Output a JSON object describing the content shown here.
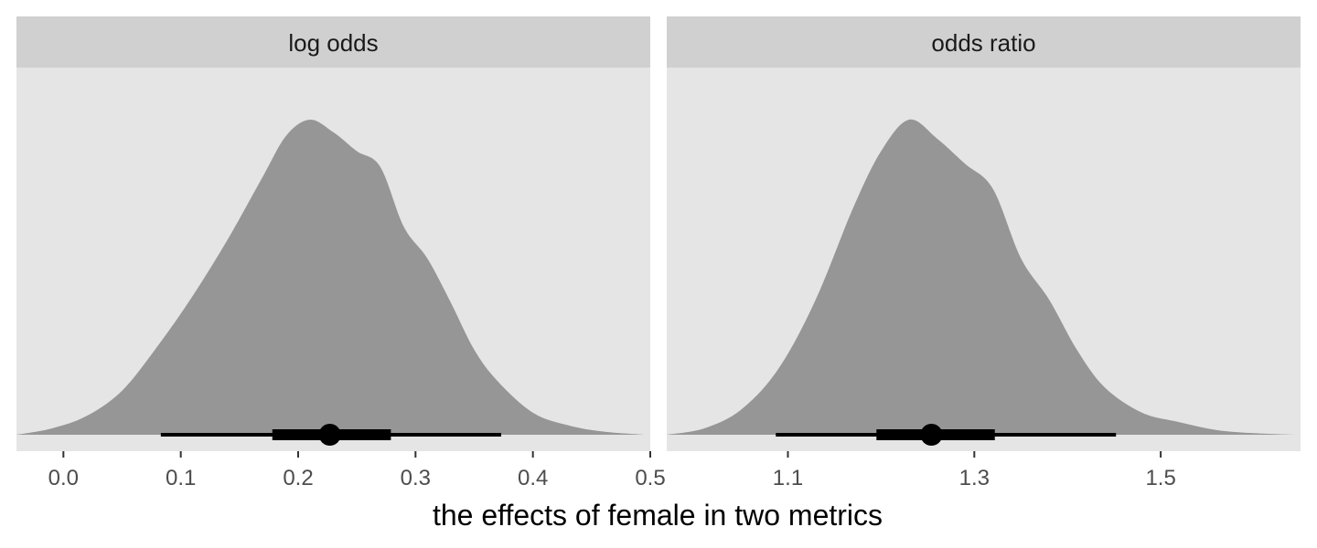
{
  "chart_data": {
    "type": "area",
    "xlabel": "the effects of female in two metrics",
    "ylabel": "",
    "grid": false,
    "panel_background": "#e5e5e5",
    "strip_background": "#d0d0d0",
    "density_fill": "#969696",
    "interval_color": "#000000",
    "panels": [
      {
        "strip_label": "log odds",
        "xlim": [
          -0.04,
          0.5
        ],
        "ticks": [
          0.0,
          0.1,
          0.2,
          0.3,
          0.4,
          0.5
        ],
        "tick_labels": [
          "0.0",
          "0.1",
          "0.2",
          "0.3",
          "0.4",
          "0.5"
        ],
        "density": {
          "x": [
            -0.04,
            -0.01,
            0.02,
            0.05,
            0.08,
            0.11,
            0.14,
            0.17,
            0.19,
            0.21,
            0.23,
            0.25,
            0.27,
            0.29,
            0.31,
            0.33,
            0.35,
            0.37,
            0.4,
            0.43,
            0.46,
            0.495
          ],
          "y": [
            0.0,
            0.02,
            0.06,
            0.14,
            0.28,
            0.44,
            0.62,
            0.82,
            0.95,
            1.0,
            0.96,
            0.9,
            0.85,
            0.66,
            0.56,
            0.42,
            0.27,
            0.17,
            0.07,
            0.03,
            0.01,
            0.0
          ]
        },
        "point_estimate": 0.227,
        "interval_inner": [
          0.178,
          0.279
        ],
        "interval_outer": [
          0.083,
          0.373
        ]
      },
      {
        "strip_label": "odds ratio",
        "xlim": [
          0.97,
          1.65
        ],
        "ticks": [
          1.1,
          1.3,
          1.5
        ],
        "tick_labels": [
          "1.1",
          "1.3",
          "1.5"
        ],
        "density": {
          "x": [
            0.97,
            1.01,
            1.05,
            1.09,
            1.13,
            1.17,
            1.2,
            1.23,
            1.26,
            1.29,
            1.32,
            1.35,
            1.38,
            1.41,
            1.44,
            1.48,
            1.52,
            1.56,
            1.6,
            1.645
          ],
          "y": [
            0.0,
            0.02,
            0.08,
            0.21,
            0.43,
            0.72,
            0.9,
            1.0,
            0.94,
            0.86,
            0.78,
            0.56,
            0.43,
            0.27,
            0.15,
            0.07,
            0.04,
            0.015,
            0.005,
            0.0
          ]
        },
        "point_estimate": 1.254,
        "interval_inner": [
          1.195,
          1.322
        ],
        "interval_outer": [
          1.087,
          1.452
        ]
      }
    ]
  }
}
